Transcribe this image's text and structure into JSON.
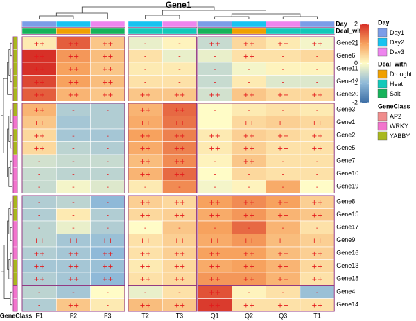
{
  "chart_data": {
    "type": "heatmap",
    "title": "Gene1",
    "columns": [
      "F1",
      "F2",
      "F3",
      "T2",
      "T3",
      "Q1",
      "Q2",
      "Q3",
      "T1"
    ],
    "column_groups": [
      [
        "F1",
        "F2",
        "F3"
      ],
      [
        "T2",
        "T3"
      ],
      [
        "Q1",
        "Q2",
        "Q3",
        "T1"
      ]
    ],
    "column_annotations": {
      "Day": [
        "Day1",
        "Day2",
        "Day3",
        "Day2",
        "Day3",
        "Day1",
        "Day2",
        "Day3",
        "Day1"
      ],
      "Deal_with": [
        "Salt",
        "Drought",
        "Salt",
        "Heat",
        "Heat",
        "Salt",
        "Drought",
        "Heat",
        "Heat"
      ]
    },
    "row_groups": [
      [
        {
          "gene": "Gene21",
          "class": "YABBY",
          "values": [
            0.2,
            1.6,
            0.6,
            -0.2,
            0.1,
            -0.5,
            0.4,
            0.2,
            -0.1
          ],
          "labels": [
            "++",
            "++",
            "++",
            "-",
            "-",
            "++",
            "++",
            "++",
            "++"
          ]
        },
        {
          "gene": "Gene6",
          "class": "YABBY",
          "values": [
            2.0,
            1.1,
            0.7,
            0.3,
            -0.2,
            -0.2,
            0.3,
            0.3,
            0.4
          ],
          "labels": [
            "++",
            "++",
            "++",
            "-",
            "-",
            "-",
            "++",
            "-",
            "-"
          ]
        },
        {
          "gene": "Gene11",
          "class": "YABBY",
          "values": [
            2.0,
            1.0,
            0.6,
            0.2,
            0.2,
            -0.5,
            -0.1,
            0.1,
            0.1
          ],
          "labels": [
            "++",
            "++",
            "++",
            "-",
            "-",
            "-",
            "-",
            "-",
            "-"
          ]
        },
        {
          "gene": "Gene12",
          "class": "YABBY",
          "values": [
            1.8,
            1.0,
            0.7,
            0.3,
            0.3,
            -0.5,
            0.2,
            -0.3,
            -0.3
          ],
          "labels": [
            "++",
            "++",
            "++",
            "-",
            "-",
            "-",
            "-",
            "-",
            "-"
          ]
        },
        {
          "gene": "Gene20",
          "class": "YABBY",
          "values": [
            1.6,
            0.8,
            0.6,
            0.6,
            0.6,
            -0.4,
            0.6,
            0.4,
            0.4
          ],
          "labels": [
            "++",
            "++",
            "++",
            "++",
            "++",
            "++",
            "++",
            "++",
            "++"
          ]
        }
      ],
      [
        {
          "gene": "Gene3",
          "class": "YABBY",
          "values": [
            0.8,
            -0.7,
            -0.7,
            0.8,
            1.5,
            0.0,
            0.2,
            0.3,
            0.2
          ],
          "labels": [
            "++",
            "-",
            "-",
            "++",
            "++",
            "-",
            "-",
            "-",
            "-"
          ]
        },
        {
          "gene": "Gene1",
          "class": "WRKY",
          "values": [
            0.6,
            -0.8,
            -0.7,
            0.9,
            1.4,
            0.0,
            0.4,
            0.5,
            0.4
          ],
          "labels": [
            "++",
            "-",
            "-",
            "++",
            "++",
            "-",
            "++",
            "++",
            "++"
          ]
        },
        {
          "gene": "Gene2",
          "class": "YABBY",
          "values": [
            0.4,
            -0.8,
            -0.8,
            1.0,
            1.3,
            0.2,
            0.5,
            0.4,
            0.3
          ],
          "labels": [
            "++",
            "-",
            "-",
            "++",
            "++",
            "++",
            "++",
            "++",
            "++"
          ]
        },
        {
          "gene": "Gene5",
          "class": "YABBY",
          "values": [
            0.4,
            -0.6,
            -0.7,
            0.9,
            1.3,
            0.2,
            0.5,
            0.3,
            0.3
          ],
          "labels": [
            "++",
            "-",
            "-",
            "++",
            "++",
            "++",
            "++",
            "++",
            "++"
          ]
        },
        {
          "gene": "Gene7",
          "class": "WRKY",
          "values": [
            -0.4,
            -0.5,
            -0.5,
            0.7,
            1.2,
            0.1,
            0.6,
            0.3,
            0.3
          ],
          "labels": [
            "-",
            "-",
            "-",
            "++",
            "++",
            "-",
            "++",
            "-",
            "-"
          ]
        },
        {
          "gene": "Gene10",
          "class": "WRKY",
          "values": [
            -0.5,
            -0.6,
            -0.6,
            0.8,
            1.5,
            0.0,
            0.4,
            0.3,
            0.3
          ],
          "labels": [
            "-",
            "-",
            "-",
            "++",
            "++",
            "-",
            "-",
            "-",
            "-"
          ]
        },
        {
          "gene": "Gene19",
          "class": "WRKY",
          "values": [
            -0.5,
            -0.1,
            -0.3,
            0.2,
            1.2,
            -0.1,
            0.1,
            0.9,
            0.0
          ],
          "labels": [
            "-",
            "-",
            "-",
            "-",
            "-",
            "-",
            "-",
            "-",
            "-"
          ]
        }
      ],
      [
        {
          "gene": "Gene8",
          "class": "YABBY",
          "values": [
            -0.7,
            -0.6,
            -1.0,
            0.5,
            0.4,
            1.0,
            1.2,
            1.0,
            0.5
          ],
          "labels": [
            "-",
            "-",
            "-",
            "++",
            "++",
            "++",
            "++",
            "++",
            "++"
          ]
        },
        {
          "gene": "Gene15",
          "class": "YABBY",
          "values": [
            -0.7,
            0.2,
            -0.7,
            0.4,
            0.5,
            0.9,
            1.1,
            0.8,
            0.6
          ],
          "labels": [
            "-",
            "-",
            "-",
            "++",
            "++",
            "++",
            "++",
            "++",
            "++"
          ]
        },
        {
          "gene": "Gene17",
          "class": "WRKY",
          "values": [
            -0.6,
            -0.2,
            -0.7,
            0.0,
            0.6,
            1.0,
            1.5,
            0.8,
            0.3
          ],
          "labels": [
            "-",
            "-",
            "-",
            "-",
            "-",
            "-",
            "-",
            "-",
            "-"
          ]
        },
        {
          "gene": "Gene9",
          "class": "WRKY",
          "values": [
            -0.6,
            -0.8,
            -0.9,
            0.3,
            0.5,
            0.9,
            1.1,
            0.7,
            0.5
          ],
          "labels": [
            "++",
            "++",
            "++",
            "++",
            "++",
            "++",
            "++",
            "++",
            "++"
          ]
        },
        {
          "gene": "Gene16",
          "class": "WRKY",
          "values": [
            -0.7,
            -0.8,
            -1.0,
            0.3,
            0.5,
            1.0,
            1.0,
            0.7,
            0.5
          ],
          "labels": [
            "++",
            "++",
            "++",
            "++",
            "++",
            "++",
            "++",
            "++",
            "++"
          ]
        },
        {
          "gene": "Gene13",
          "class": "YABBY",
          "values": [
            -0.8,
            -0.8,
            -0.9,
            0.2,
            0.4,
            0.9,
            1.0,
            0.8,
            0.4
          ],
          "labels": [
            "++",
            "++",
            "++",
            "++",
            "++",
            "++",
            "++",
            "++",
            "++"
          ]
        },
        {
          "gene": "Gene18",
          "class": "YABBY",
          "values": [
            -0.7,
            -0.8,
            -1.0,
            0.3,
            0.4,
            1.1,
            1.1,
            0.8,
            0.3
          ],
          "labels": [
            "++",
            "++",
            "++",
            "++",
            "++",
            "++",
            "++",
            "++",
            "++"
          ]
        }
      ],
      [
        {
          "gene": "Gene4",
          "class": "WRKY",
          "values": [
            -0.6,
            -0.8,
            0.0,
            -0.2,
            0.3,
            1.7,
            0.1,
            0.3,
            -0.9
          ],
          "labels": [
            "-",
            "-",
            "-",
            "-",
            "-",
            "++",
            "-",
            "-",
            "-"
          ]
        },
        {
          "gene": "Gene14",
          "class": "WRKY",
          "values": [
            -0.7,
            0.6,
            0.2,
            0.7,
            0.6,
            1.9,
            0.3,
            0.3,
            0.3
          ],
          "labels": [
            "-",
            "++",
            "-",
            "++",
            "++",
            "++",
            "++",
            "++",
            "++"
          ]
        }
      ]
    ],
    "color_scale": {
      "min": -2,
      "max": 2,
      "ticks": [
        -2,
        -1,
        0,
        1,
        2
      ],
      "colors": [
        "#3e6fa6",
        "#8fb9d8",
        "#fffcc7",
        "#f7a25e",
        "#d73027"
      ]
    },
    "cell_label_color": "#e41a1c",
    "legends": [
      {
        "title": "Day",
        "items": [
          {
            "label": "Day1",
            "color": "#7b9de8"
          },
          {
            "label": "Day2",
            "color": "#17c3f0"
          },
          {
            "label": "Day3",
            "color": "#ee85ee"
          }
        ]
      },
      {
        "title": "Deal_with",
        "items": [
          {
            "label": "Drought",
            "color": "#f0a000"
          },
          {
            "label": "Heat",
            "color": "#12c9b9"
          },
          {
            "label": "Salt",
            "color": "#16b35a"
          }
        ]
      },
      {
        "title": "GeneClass",
        "items": [
          {
            "label": "AP2",
            "color": "#f08d8d"
          },
          {
            "label": "WRKY",
            "color": "#f275cd"
          },
          {
            "label": "YABBY",
            "color": "#a8b81e"
          }
        ]
      }
    ],
    "annotation_names": [
      "Day",
      "Deal_with"
    ],
    "row_annotation_name": "GeneClass"
  }
}
